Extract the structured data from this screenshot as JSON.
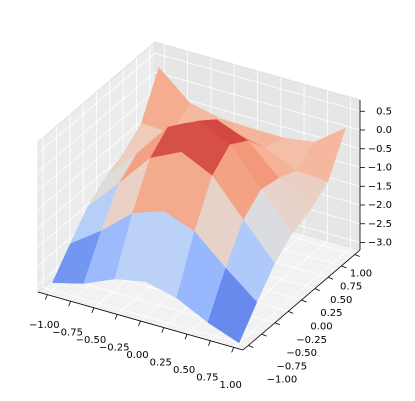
{
  "chart_data": {
    "type": "surface",
    "colormap": "coolwarm",
    "grid": true,
    "x": [
      -1,
      -0.667,
      -0.333,
      0,
      0.333,
      0.667,
      1
    ],
    "y": [
      -1,
      -0.667,
      -0.333,
      0,
      0.333,
      0.667,
      1
    ],
    "z": [
      [
        -3.0,
        -2.79,
        -2.43,
        -2.27,
        -2.47,
        -2.89,
        -3.2
      ],
      [
        -2.37,
        -1.79,
        -1.09,
        -0.8,
        -1.11,
        -1.85,
        -2.52
      ],
      [
        -1.78,
        -0.93,
        -0.02,
        0.37,
        -0.03,
        -0.97,
        -1.89
      ],
      [
        -1.39,
        -0.54,
        0.4,
        0.8,
        0.4,
        -0.56,
        -1.49
      ],
      [
        -1.17,
        -0.63,
        0.1,
        0.43,
        0.1,
        -0.66,
        -1.28
      ],
      [
        -0.78,
        -0.81,
        -0.48,
        -0.31,
        -0.5,
        -0.87,
        -0.93
      ],
      [
        0.3,
        -0.41,
        -0.59,
        -0.62,
        -0.63,
        -0.51,
        0.1
      ]
    ],
    "xlim": [
      -1.1,
      1.1
    ],
    "ylim": [
      -1.1,
      1.1
    ],
    "zlim": [
      -3.2,
      0.8
    ],
    "xticks": [
      {
        "value": -1,
        "label": "−1.00"
      },
      {
        "value": -0.75,
        "label": "−0.75"
      },
      {
        "value": -0.5,
        "label": "−0.50"
      },
      {
        "value": -0.25,
        "label": "−0.25"
      },
      {
        "value": 0,
        "label": "0.00"
      },
      0.25,
      {
        "value": 0.5,
        "label": "0.50"
      },
      0.75,
      {
        "value": 1,
        "label": "1.00"
      }
    ],
    "yticks": [
      {
        "value": -1,
        "label": "−1.00"
      },
      {
        "value": -0.75,
        "label": "−0.75"
      },
      {
        "value": -0.5,
        "label": "−0.50"
      },
      {
        "value": -0.25,
        "label": "−0.25"
      },
      {
        "value": 0,
        "label": "0.00"
      },
      0.25,
      {
        "value": 0.5,
        "label": "0.50"
      },
      0.75,
      {
        "value": 1,
        "label": "1.00"
      }
    ],
    "zticks": [
      0.5,
      {
        "value": 0,
        "label": "0.0"
      },
      {
        "value": -0.5,
        "label": "−0.5"
      },
      {
        "value": -1,
        "label": "−1.0"
      },
      {
        "value": -1.5,
        "label": "−1.5"
      },
      {
        "value": -2,
        "label": "−2.0"
      },
      {
        "value": -2.5,
        "label": "−2.5"
      },
      {
        "value": -3,
        "label": "−3.0"
      }
    ]
  }
}
